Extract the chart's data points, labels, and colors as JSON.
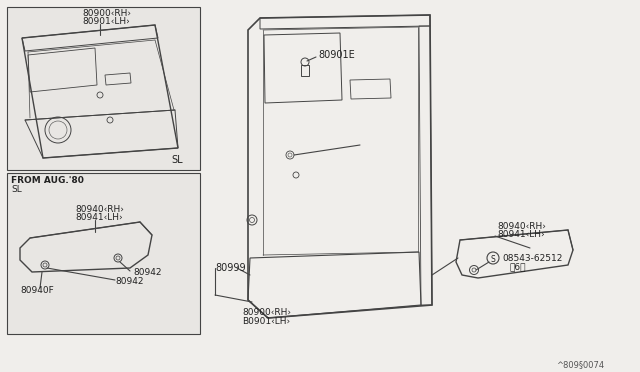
{
  "bg_color": "#f0eeeb",
  "line_color": "#444444",
  "text_color": "#222222",
  "diagram_ref": "^809§0074",
  "labels": {
    "top_box_part1": "80900‹RH›",
    "top_box_part2": "80901‹LH›",
    "top_box_badge": "SL",
    "bottom_box_header1": "FROM AUG.'80",
    "bottom_box_header2": "SL",
    "bottom_box_part1": "80940‹RH›",
    "bottom_box_part2": "80941‹LH›",
    "bottom_box_screw1": "80942",
    "bottom_box_screw2": "80942",
    "bottom_box_base": "80940F",
    "main_clip": "80901E",
    "main_trim": "80999",
    "main_part3": "80900‹RH›",
    "main_part4": "B0901‹LH›",
    "right_part1": "80940‹RH›",
    "right_part2": "80941‹LH›",
    "right_screw_label": "08543-62512",
    "right_screw_qty": "〈6〉"
  }
}
